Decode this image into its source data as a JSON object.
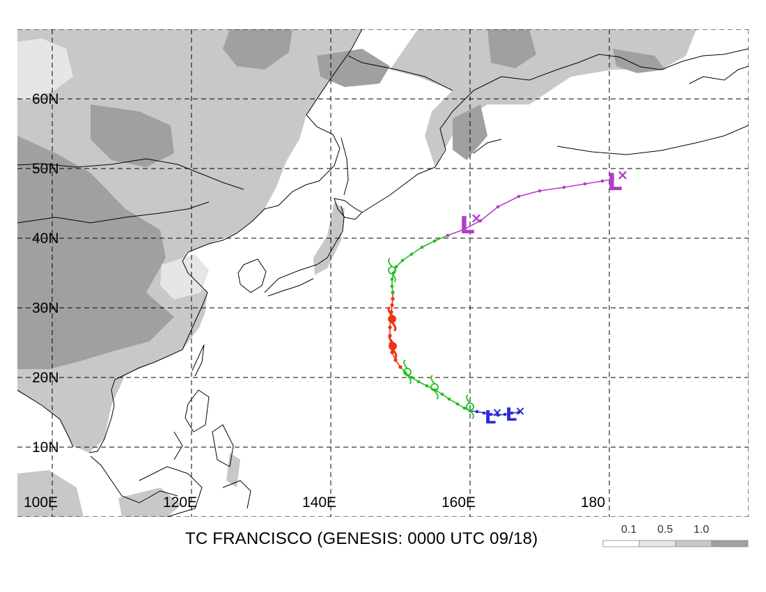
{
  "title": "TC FRANCISCO (GENESIS: 0000 UTC 09/18)",
  "lat_labels": [
    "10N",
    "20N",
    "30N",
    "40N",
    "50N",
    "60N"
  ],
  "lon_labels": [
    "100E",
    "120E",
    "140E",
    "160E",
    "180"
  ],
  "scale": {
    "labels": [
      "0.1",
      "0.5",
      "1.0"
    ],
    "colors": [
      "#ffffff",
      "#e6e6e6",
      "#c8c8c8",
      "#a0a0a0"
    ]
  },
  "track_colors": {
    "low": "#2b2bd9",
    "tropical_storm": "#1fbf1f",
    "typhoon": "#f03214",
    "extratropical": "#b43cc8"
  },
  "symbols": {
    "low": "L",
    "extratropical_low": "L",
    "position_mark": "×"
  },
  "track": {
    "low": [
      [
        167,
        15
      ],
      [
        166,
        14.9
      ],
      [
        165,
        14.7
      ],
      [
        164,
        14.6
      ],
      [
        163,
        14.7
      ],
      [
        162,
        14.9
      ],
      [
        161,
        15.1
      ],
      [
        160,
        15.2
      ]
    ],
    "tropical_storm": [
      [
        160,
        15.2
      ],
      [
        159.2,
        15.6
      ],
      [
        158.2,
        16.2
      ],
      [
        157,
        16.9
      ],
      [
        156,
        17.6
      ],
      [
        155,
        18.2
      ],
      [
        153.8,
        18.8
      ],
      [
        152.6,
        19.4
      ],
      [
        151.6,
        20
      ],
      [
        150.7,
        20.7
      ],
      [
        150,
        21.5
      ]
    ],
    "typhoon": [
      [
        150,
        21.5
      ],
      [
        149.3,
        22.5
      ],
      [
        148.8,
        23.6
      ],
      [
        148.6,
        24.8
      ],
      [
        148.5,
        26
      ],
      [
        148.5,
        27.2
      ],
      [
        148.6,
        28.3
      ],
      [
        148.7,
        29.4
      ],
      [
        148.8,
        30.4
      ],
      [
        148.9,
        31.3
      ],
      [
        148.9,
        32.2
      ]
    ],
    "tropical_storm_2": [
      [
        148.9,
        32.2
      ],
      [
        148.8,
        33.1
      ],
      [
        148.8,
        34.1
      ],
      [
        149,
        35
      ],
      [
        149.4,
        35.9
      ],
      [
        150.3,
        36.8
      ],
      [
        151.6,
        37.7
      ],
      [
        153.1,
        38.7
      ],
      [
        154.9,
        39.6
      ],
      [
        156.8,
        40.4
      ]
    ],
    "extratropical": [
      [
        156.8,
        40.4
      ],
      [
        159,
        41.2
      ],
      [
        161.5,
        42.5
      ],
      [
        164,
        44.5
      ],
      [
        167,
        46
      ],
      [
        170,
        46.8
      ],
      [
        173.5,
        47.3
      ],
      [
        176.5,
        47.8
      ],
      [
        179,
        48.2
      ],
      [
        180.5,
        48.5
      ]
    ]
  }
}
